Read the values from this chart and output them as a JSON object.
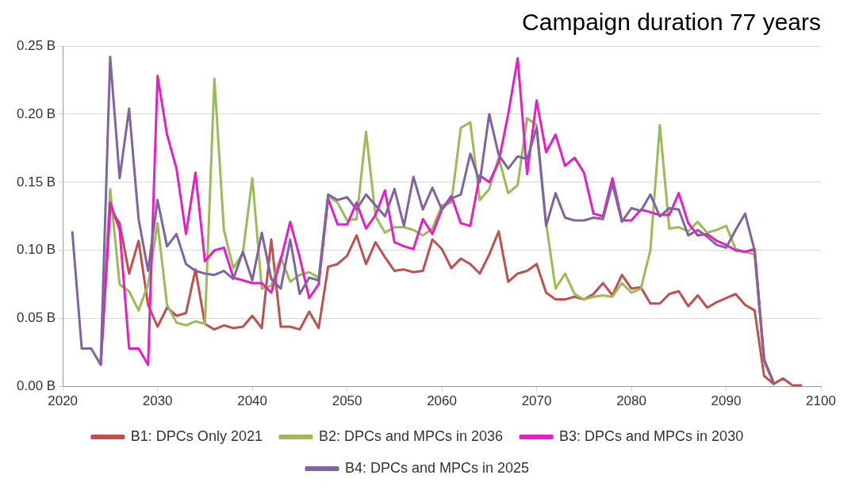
{
  "chart_data": {
    "type": "line",
    "title": "Campaign duration 77 years",
    "x": [
      2021,
      2022,
      2023,
      2024,
      2025,
      2026,
      2027,
      2028,
      2029,
      2030,
      2031,
      2032,
      2033,
      2034,
      2035,
      2036,
      2037,
      2038,
      2039,
      2040,
      2041,
      2042,
      2043,
      2044,
      2045,
      2046,
      2047,
      2048,
      2049,
      2050,
      2051,
      2052,
      2053,
      2054,
      2055,
      2056,
      2057,
      2058,
      2059,
      2060,
      2061,
      2062,
      2063,
      2064,
      2065,
      2066,
      2067,
      2068,
      2069,
      2070,
      2071,
      2072,
      2073,
      2074,
      2075,
      2076,
      2077,
      2078,
      2079,
      2080,
      2081,
      2082,
      2083,
      2084,
      2085,
      2086,
      2087,
      2088,
      2089,
      2090,
      2091,
      2092,
      2093,
      2094,
      2095,
      2096,
      2097,
      2098
    ],
    "series": [
      {
        "name": "B1: DPCs Only 2021",
        "color": "#c0504d",
        "values": [
          null,
          null,
          null,
          0.016,
          0.13,
          0.12,
          0.083,
          0.107,
          0.06,
          0.044,
          0.058,
          0.052,
          0.054,
          0.086,
          0.046,
          0.042,
          0.045,
          0.043,
          0.044,
          0.052,
          0.043,
          0.108,
          0.044,
          0.044,
          0.042,
          0.055,
          0.043,
          0.088,
          0.09,
          0.096,
          0.111,
          0.09,
          0.106,
          0.095,
          0.085,
          0.086,
          0.084,
          0.085,
          0.108,
          0.101,
          0.087,
          0.094,
          0.09,
          0.083,
          0.097,
          0.114,
          0.077,
          0.083,
          0.085,
          0.09,
          0.069,
          0.064,
          0.064,
          0.066,
          0.064,
          0.068,
          0.076,
          0.067,
          0.082,
          0.072,
          0.073,
          0.061,
          0.061,
          0.068,
          0.07,
          0.059,
          0.067,
          0.058,
          0.062,
          0.065,
          0.068,
          0.06,
          0.056,
          0.008,
          0.002,
          0.006,
          0.001,
          0.001
        ]
      },
      {
        "name": "B2: DPCs and MPCs in 2036",
        "color": "#9bbb59",
        "values": [
          null,
          null,
          null,
          0.016,
          0.145,
          0.075,
          0.07,
          0.056,
          0.075,
          0.12,
          0.06,
          0.047,
          0.045,
          0.048,
          0.046,
          0.226,
          0.115,
          0.087,
          0.098,
          0.153,
          0.072,
          0.074,
          0.095,
          0.077,
          0.082,
          0.084,
          0.08,
          0.14,
          0.135,
          0.122,
          0.123,
          0.187,
          0.125,
          0.113,
          0.117,
          0.117,
          0.115,
          0.111,
          0.116,
          0.133,
          0.135,
          0.19,
          0.194,
          0.137,
          0.145,
          0.168,
          0.142,
          0.148,
          0.197,
          0.192,
          0.12,
          0.072,
          0.083,
          0.068,
          0.064,
          0.066,
          0.067,
          0.066,
          0.076,
          0.069,
          0.072,
          0.1,
          0.192,
          0.116,
          0.117,
          0.114,
          0.121,
          0.113,
          0.115,
          0.118,
          0.101,
          0.099,
          0.097,
          0.018,
          0.003,
          null,
          null,
          null
        ]
      },
      {
        "name": "B3: DPCs and MPCs in 2030",
        "color": "#e61ec3",
        "values": [
          null,
          null,
          null,
          0.016,
          0.135,
          0.115,
          0.028,
          0.028,
          0.016,
          0.228,
          0.185,
          0.16,
          0.112,
          0.157,
          0.092,
          0.1,
          0.102,
          0.08,
          0.078,
          0.076,
          0.076,
          0.069,
          0.093,
          0.121,
          0.095,
          0.065,
          0.075,
          0.138,
          0.119,
          0.119,
          0.135,
          0.116,
          0.126,
          0.144,
          0.106,
          0.103,
          0.101,
          0.123,
          0.112,
          0.13,
          0.14,
          0.12,
          0.118,
          0.155,
          0.15,
          0.165,
          0.2,
          0.241,
          0.156,
          0.21,
          0.172,
          0.185,
          0.162,
          0.168,
          0.157,
          0.127,
          0.125,
          0.153,
          0.122,
          0.122,
          0.13,
          0.128,
          0.126,
          0.126,
          0.142,
          0.12,
          0.111,
          0.112,
          0.107,
          0.104,
          0.1,
          0.099,
          0.101,
          0.02,
          0.003,
          null,
          null,
          null
        ]
      },
      {
        "name": "B4: DPCs and MPCs in 2025",
        "color": "#8064a2",
        "values": [
          0.114,
          0.028,
          0.028,
          0.016,
          0.242,
          0.153,
          0.204,
          0.123,
          0.085,
          0.137,
          0.103,
          0.112,
          0.09,
          0.085,
          0.083,
          0.082,
          0.085,
          0.079,
          0.099,
          0.078,
          0.113,
          0.079,
          0.072,
          0.108,
          0.068,
          0.08,
          0.078,
          0.141,
          0.137,
          0.139,
          0.13,
          0.141,
          0.133,
          0.125,
          0.145,
          0.118,
          0.154,
          0.13,
          0.146,
          0.13,
          0.138,
          0.141,
          0.171,
          0.15,
          0.2,
          0.17,
          0.16,
          0.169,
          0.167,
          0.19,
          0.118,
          0.142,
          0.124,
          0.122,
          0.122,
          0.124,
          0.123,
          0.149,
          0.121,
          0.131,
          0.129,
          0.141,
          0.125,
          0.131,
          0.13,
          0.111,
          0.115,
          0.11,
          0.104,
          0.102,
          0.115,
          0.127,
          0.1,
          0.02,
          0.003,
          null,
          null,
          null
        ]
      }
    ],
    "xlim": [
      2020,
      2100
    ],
    "xticks": [
      2020,
      2030,
      2040,
      2050,
      2060,
      2070,
      2080,
      2090,
      2100
    ],
    "ylim": [
      0,
      0.25
    ],
    "yticks": [
      {
        "value": 0,
        "label": "0.00 B"
      },
      {
        "value": 0.05,
        "label": "0.05 B"
      },
      {
        "value": 0.1,
        "label": "0.10 B"
      },
      {
        "value": 0.15,
        "label": "0.15 B"
      },
      {
        "value": 0.2,
        "label": "0.20 B"
      },
      {
        "value": 0.25,
        "label": "0.25 B"
      }
    ],
    "grid": "y",
    "legend": "bottom",
    "marker": "none",
    "line_style": "solid"
  }
}
